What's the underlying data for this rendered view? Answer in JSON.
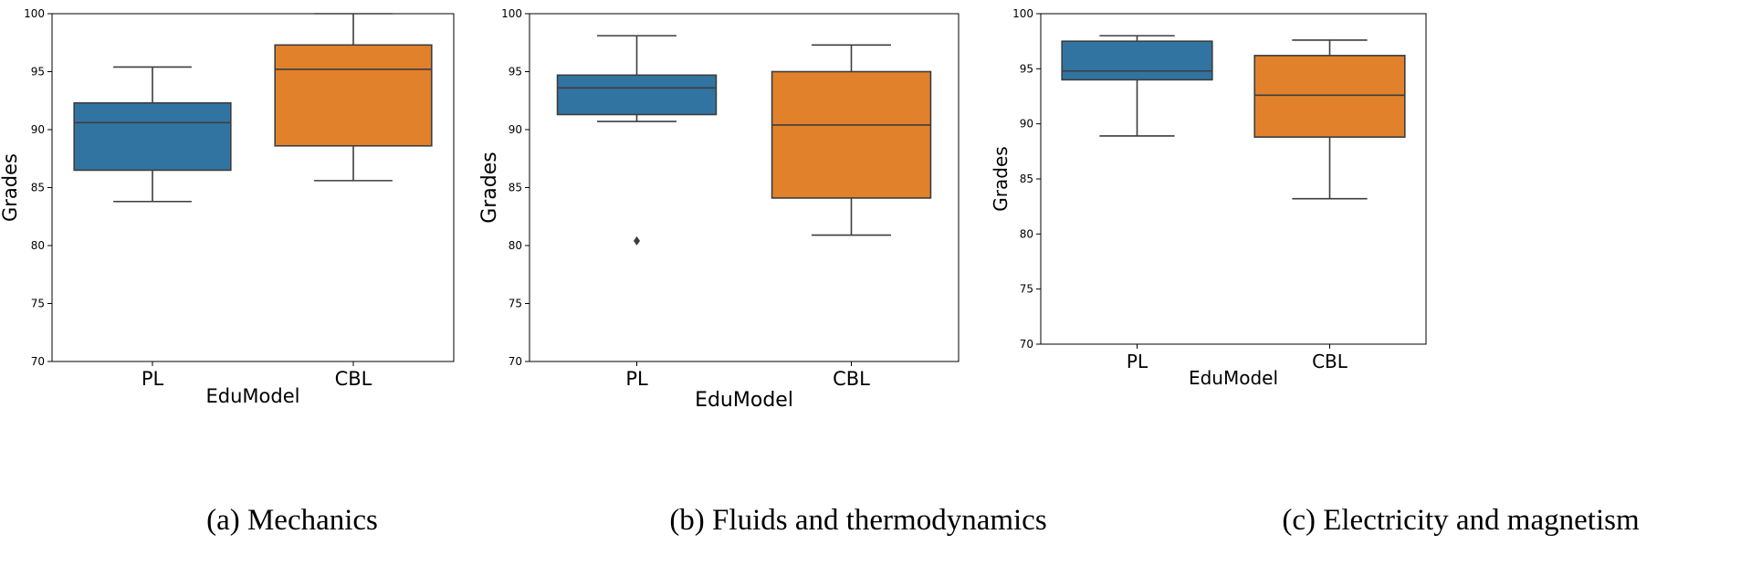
{
  "chart_data": [
    {
      "type": "box",
      "xlabel": "EduModel",
      "ylabel": "Grades",
      "categories": [
        "PL",
        "CBL"
      ],
      "ylim": [
        70,
        100
      ],
      "yticks": [
        70,
        75,
        80,
        85,
        90,
        95,
        100
      ],
      "grid": false,
      "caption": "(a) Mechanics",
      "boxes": [
        {
          "category": "PL",
          "min": 83.8,
          "q1": 86.5,
          "median": 90.6,
          "q3": 92.3,
          "max": 95.4,
          "outliers": [],
          "color": "#3274a1"
        },
        {
          "category": "CBL",
          "min": 85.6,
          "q1": 88.6,
          "median": 95.2,
          "q3": 97.3,
          "max": 100.0,
          "outliers": [],
          "color": "#e1812c"
        }
      ]
    },
    {
      "type": "box",
      "xlabel": "EduModel",
      "ylabel": "Grades",
      "categories": [
        "PL",
        "CBL"
      ],
      "ylim": [
        70,
        100
      ],
      "yticks": [
        70,
        75,
        80,
        85,
        90,
        95,
        100
      ],
      "grid": false,
      "caption": "(b) Fluids and thermodynamics",
      "boxes": [
        {
          "category": "PL",
          "min": 90.7,
          "q1": 91.3,
          "median": 93.6,
          "q3": 94.7,
          "max": 98.1,
          "outliers": [
            80.4
          ],
          "color": "#3274a1"
        },
        {
          "category": "CBL",
          "min": 80.9,
          "q1": 84.1,
          "median": 90.4,
          "q3": 95.0,
          "max": 97.3,
          "outliers": [],
          "color": "#e1812c"
        }
      ]
    },
    {
      "type": "box",
      "xlabel": "EduModel",
      "ylabel": "Grades",
      "categories": [
        "PL",
        "CBL"
      ],
      "ylim": [
        70,
        100
      ],
      "yticks": [
        70,
        75,
        80,
        85,
        90,
        95,
        100
      ],
      "grid": false,
      "caption": "(c) Electricity and magnetism",
      "boxes": [
        {
          "category": "PL",
          "min": 88.9,
          "q1": 94.0,
          "median": 94.8,
          "q3": 97.5,
          "max": 98.0,
          "outliers": [],
          "color": "#3274a1"
        },
        {
          "category": "CBL",
          "min": 83.2,
          "q1": 88.8,
          "median": 92.6,
          "q3": 96.2,
          "max": 97.6,
          "outliers": [],
          "color": "#e1812c"
        }
      ]
    }
  ]
}
